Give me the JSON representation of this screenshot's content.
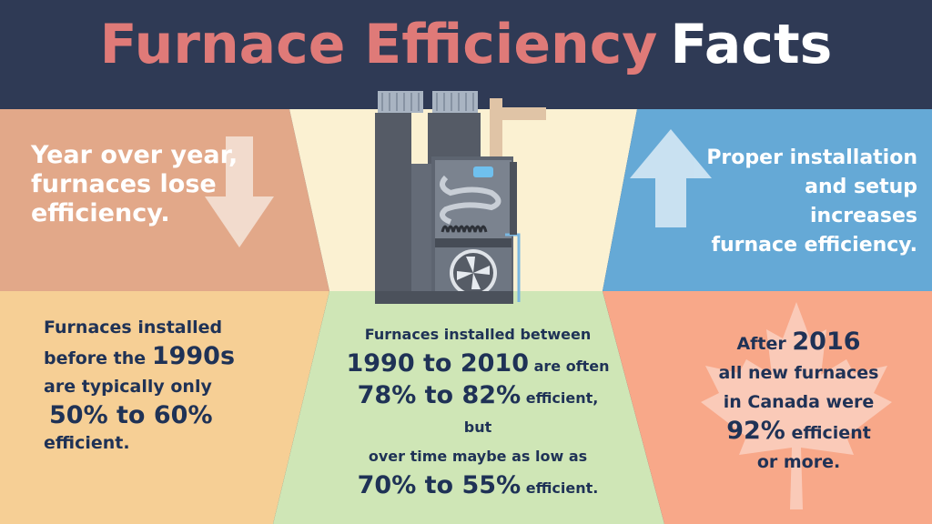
{
  "title": {
    "part1": "Furnace Efficiency",
    "part2": "Facts"
  },
  "colors": {
    "header": "#2f3a55",
    "top_left_panel": "#e2a889",
    "top_center_panel": "#fbf1d2",
    "top_right_panel": "#65a9d6",
    "bottom_left_panel": "#f6cf95",
    "bottom_center_panel": "#cfe6b6",
    "bottom_right_panel": "#f8a889",
    "title_accent": "#df7a78",
    "text_dark": "#1f3256"
  },
  "icons": {
    "top_left": "arrow-down-icon",
    "top_right": "arrow-up-icon",
    "center": "furnace-icon",
    "bottom_right": "maple-leaf-icon"
  },
  "top_left": {
    "lines": [
      "Year over year,",
      "furnaces lose",
      "efficiency."
    ]
  },
  "top_right": {
    "lines": [
      "Proper installation",
      "and setup increases",
      "furnace efficiency."
    ]
  },
  "bottom_left": {
    "line1": "Furnaces installed",
    "line2_pre": "before the",
    "line2_big": "1990s",
    "line3": "are typically only",
    "line4_big": "50% to 60%",
    "line5": "efficient."
  },
  "bottom_center": {
    "line1": "Furnaces installed between",
    "line2_big": "1990 to 2010",
    "line2_post": "are often",
    "line3_big": "78% to 82%",
    "line3_post": "efficient, but",
    "line4": "over time maybe as low as",
    "line5_big": "70% to 55%",
    "line5_post": "efficient."
  },
  "bottom_right": {
    "line1_pre": "After",
    "line1_big": "2016",
    "line2": "all new furnaces",
    "line3": "in Canada were",
    "line4_big": "92%",
    "line4_post": "efficient",
    "line5": "or more."
  }
}
